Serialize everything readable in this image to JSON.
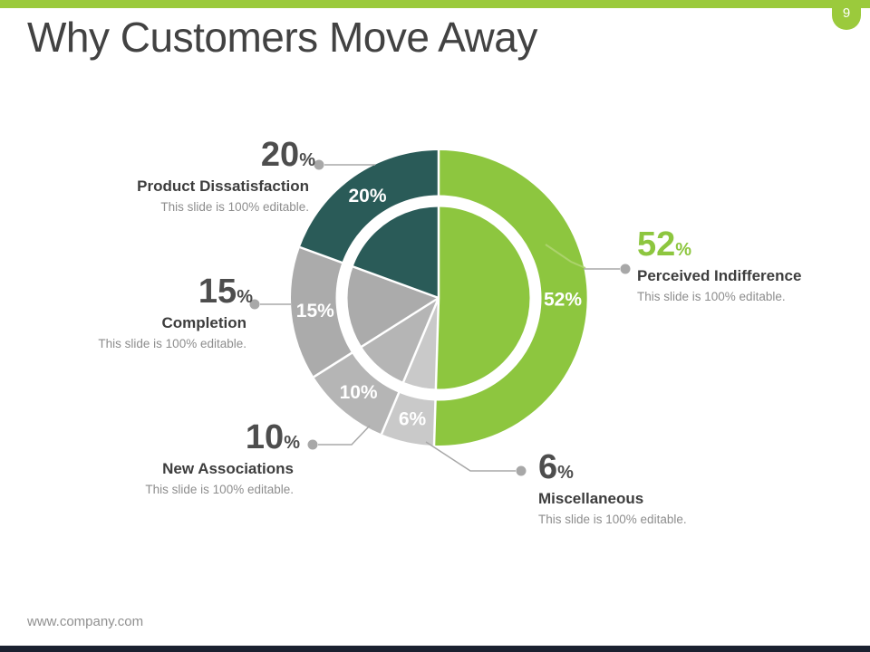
{
  "slide": {
    "title": "Why Customers Move Away",
    "page_number": "9",
    "footer": "www.company.com",
    "colors": {
      "accent_green": "#9bca3c",
      "chart_green": "#8dc63f",
      "chart_teal": "#2a5b58",
      "footer_bar": "#1b2130",
      "callout_gray": "#a8a8a8"
    }
  },
  "chart_data": {
    "type": "pie",
    "title": "Why Customers Move Away",
    "unit": "%",
    "direction": "clockwise",
    "start_angle": "12 o'clock",
    "inner_ring": true,
    "legend_position": "callouts",
    "segments": [
      {
        "label": "Perceived Indifference",
        "value": 52,
        "color": "#8dc63f",
        "note": "This slide is 100% editable."
      },
      {
        "label": "Miscellaneous",
        "value": 6,
        "color": "#c9c9c9",
        "note": "This slide is 100% editable."
      },
      {
        "label": "New Associations",
        "value": 10,
        "color": "#b5b5b5",
        "note": "This slide is 100% editable."
      },
      {
        "label": "Completion",
        "value": 15,
        "color": "#ababab",
        "note": "This slide is 100% editable."
      },
      {
        "label": "Product Dissatisfaction",
        "value": 20,
        "color": "#2a5b58",
        "note": "This slide is 100% editable."
      }
    ]
  }
}
